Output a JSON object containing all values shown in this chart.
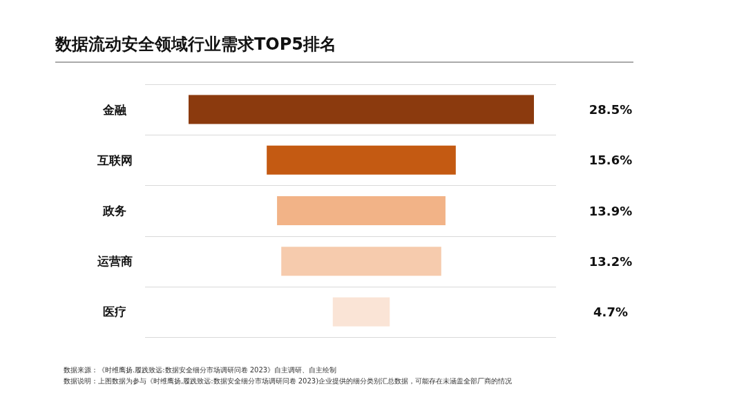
{
  "chart_data": {
    "type": "other",
    "title": "数据流动安全领域行业需求TOP5排名",
    "categories": [
      "金融",
      "互联网",
      "政务",
      "运营商",
      "医疗"
    ],
    "values": [
      28.5,
      15.6,
      13.9,
      13.2,
      4.7
    ],
    "colors": [
      "#8b3a0e",
      "#c45a12",
      "#f2b387",
      "#f6cbad",
      "#fae4d6"
    ],
    "value_labels": [
      "28.5%",
      "15.6%",
      "13.9%",
      "13.2%",
      "4.7%"
    ],
    "annotations": [
      "数据来源：《时维鹰扬.履践致远:数据安全细分市场调研问卷 2023》自主调研、自主绘制",
      "数据说明：上图数据为参与《时维鹰扬,履践致远:数据安全细分市场调研问卷 2023)企业提供的细分类别汇总数据，可能存在未涵盖全部厂商的情况"
    ]
  }
}
